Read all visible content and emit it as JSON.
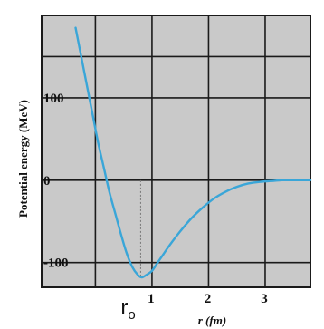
{
  "chart_data": {
    "type": "line",
    "title": "",
    "xlabel": "r (fm)",
    "ylabel": "Potential energy (MeV)",
    "xlim": [
      -0.95,
      3.8
    ],
    "ylim": [
      -130,
      200
    ],
    "x_ticks": [
      {
        "value": 1,
        "label": "1"
      },
      {
        "value": 2,
        "label": "2"
      },
      {
        "value": 3,
        "label": "3"
      }
    ],
    "y_ticks": [
      {
        "value": 100,
        "label": "100"
      },
      {
        "value": 0,
        "label": "0"
      },
      {
        "value": -100,
        "label": "-100"
      }
    ],
    "grid": true,
    "annotations": [
      {
        "label": "r",
        "subscript": "o",
        "x": 0.8
      }
    ],
    "series": [
      {
        "color": "#3aa6d8",
        "x": [
          -0.35,
          -0.25,
          -0.15,
          -0.05,
          0.05,
          0.15,
          0.25,
          0.35,
          0.45,
          0.55,
          0.65,
          0.75,
          0.82,
          0.9,
          1.0,
          1.1,
          1.2,
          1.3,
          1.5,
          1.7,
          1.9,
          2.1,
          2.3,
          2.5,
          2.7,
          2.9,
          3.1,
          3.3,
          3.5,
          3.8
        ],
        "y": [
          185,
          150,
          115,
          80,
          45,
          15,
          -15,
          -40,
          -65,
          -88,
          -105,
          -115,
          -118,
          -115,
          -110,
          -100,
          -90,
          -80,
          -62,
          -46,
          -33,
          -22,
          -14,
          -8,
          -4,
          -2,
          -1,
          0,
          0,
          0
        ]
      }
    ],
    "background": "#c9c9c9",
    "frame_color": "#1a1a1a",
    "grid_color": "#1a1a1a"
  }
}
